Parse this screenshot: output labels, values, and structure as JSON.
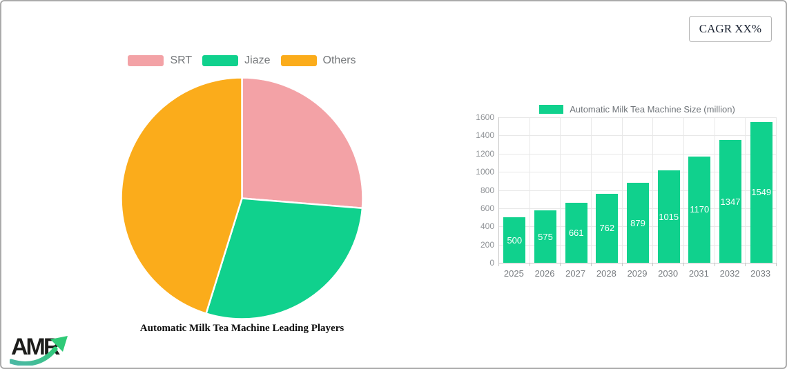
{
  "badge": {
    "cagr": "CAGR XX%"
  },
  "logo": {
    "text": "AMR"
  },
  "chart_data": [
    {
      "type": "pie",
      "title": "Automatic Milk Tea Machine Leading Players",
      "labels": [
        "SRT",
        "Jiaze",
        "Others"
      ],
      "values_percent": [
        26.3,
        28.5,
        45.2
      ],
      "colors": [
        "#f3a2a6",
        "#10d18d",
        "#fbac1b"
      ],
      "slice_border_color": "#ffffff",
      "start_angle_deg": 0,
      "direction": "clockwise",
      "legend_position": "top"
    },
    {
      "type": "bar",
      "categories": [
        "2025",
        "2026",
        "2027",
        "2028",
        "2029",
        "2030",
        "2031",
        "2032",
        "2033"
      ],
      "series": [
        {
          "name": "Automatic Milk Tea Machine Size (million)",
          "values": [
            500,
            575,
            661,
            762,
            879,
            1015,
            1170,
            1347,
            1549
          ]
        }
      ],
      "ylim": [
        0,
        1600
      ],
      "yticks": [
        0,
        200,
        400,
        600,
        800,
        1000,
        1200,
        1400,
        1600
      ],
      "bar_color": "#10d18d",
      "value_label_color": "#ffffff",
      "grid": true,
      "legend_position": "top"
    }
  ]
}
